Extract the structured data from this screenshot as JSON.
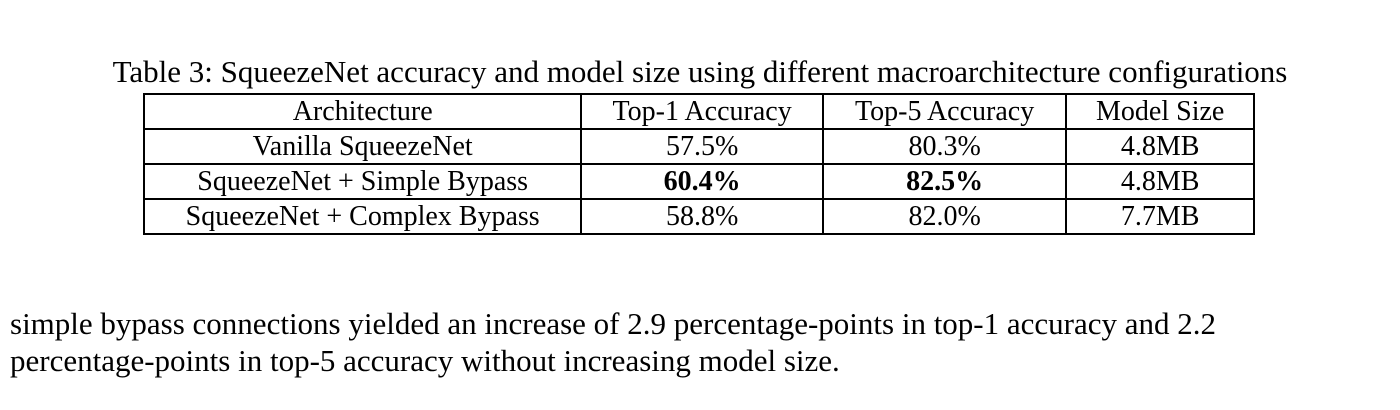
{
  "table": {
    "caption": "Table 3: SqueezeNet accuracy and model size using different macroarchitecture configurations",
    "headers": [
      "Architecture",
      "Top-1 Accuracy",
      "Top-5 Accuracy",
      "Model Size"
    ],
    "rows": [
      {
        "architecture": "Vanilla SqueezeNet",
        "top1": "57.5%",
        "top5": "80.3%",
        "size": "4.8MB"
      },
      {
        "architecture": "SqueezeNet + Simple Bypass",
        "top1": "60.4%",
        "top5": "82.5%",
        "size": "4.8MB"
      },
      {
        "architecture": "SqueezeNet + Complex Bypass",
        "top1": "58.8%",
        "top5": "82.0%",
        "size": "7.7MB"
      }
    ]
  },
  "paragraph": {
    "line1": "simple bypass connections yielded an increase of 2.9 percentage-points in top-1 accuracy and 2.2",
    "line2": "percentage-points in top-5 accuracy without increasing model size."
  }
}
